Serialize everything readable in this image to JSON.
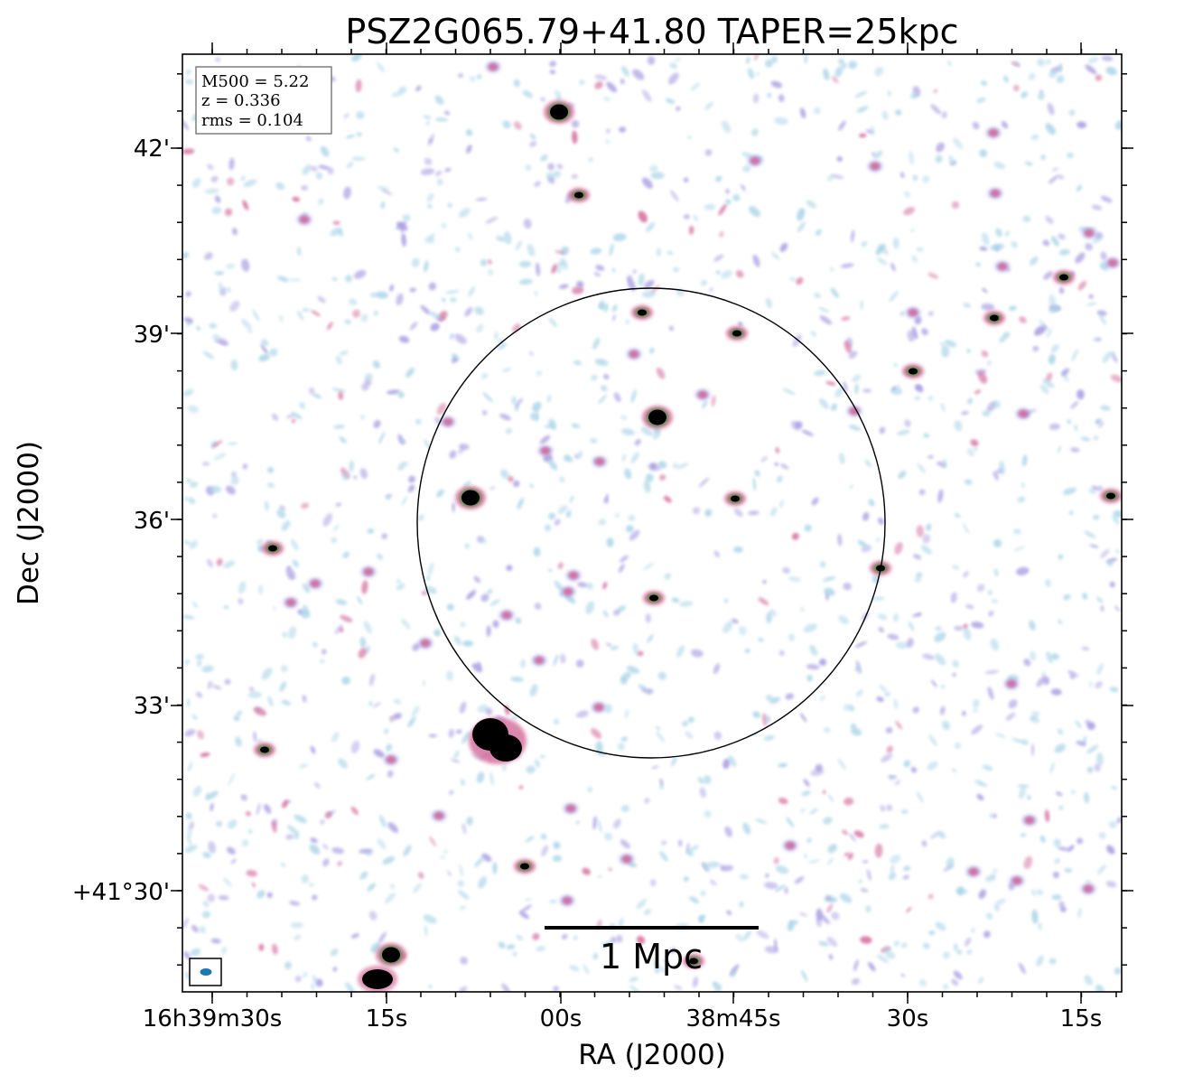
{
  "title": "PSZ2G065.79+41.80 TAPER=25kpc",
  "axes": {
    "xlabel": "RA (J2000)",
    "ylabel": "Dec (J2000)",
    "x_ticks": [
      "16h39m30s",
      "15s",
      "00s",
      "38m45s",
      "30s",
      "15s"
    ],
    "y_ticks": [
      "42'",
      "39'",
      "36'",
      "33'",
      "+41°30'"
    ]
  },
  "info_box": {
    "line1": "M500 = 5.22",
    "line2": "z = 0.336",
    "line3": "rms = 0.104"
  },
  "scale_bar": {
    "label": "1 Mpc"
  },
  "colors": {
    "noise_cyan": "#a9d4e6",
    "noise_purple": "#a59be0",
    "source_pink": "#d36a9a",
    "source_core": "#000000",
    "green_ring": "#4a8a3a",
    "beam": "#1f77b4"
  }
}
